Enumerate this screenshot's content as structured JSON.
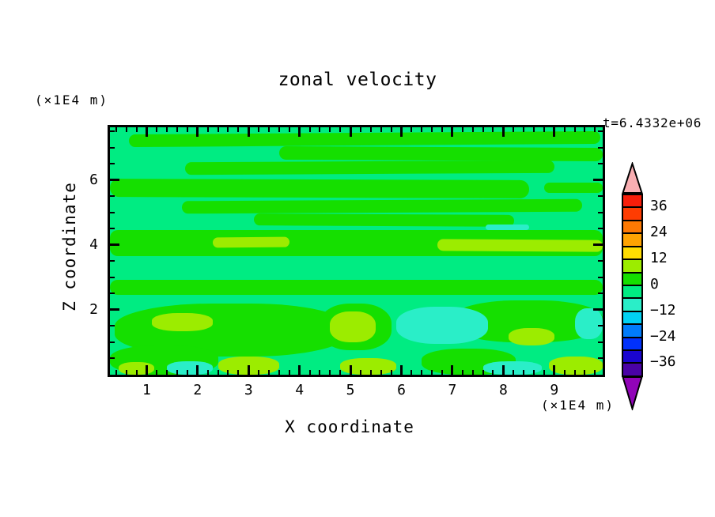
{
  "title": "zonal velocity",
  "timestamp": "t=6.4332e+06",
  "axes": {
    "x": {
      "title": "X coordinate",
      "unit": "(×1E4 m)",
      "tick_labels": [
        "1",
        "2",
        "3",
        "4",
        "5",
        "6",
        "7",
        "8",
        "9"
      ],
      "tick_values": [
        1,
        2,
        3,
        4,
        5,
        6,
        7,
        8,
        9
      ],
      "minor_step": 0.2,
      "range": [
        0.28,
        9.95
      ]
    },
    "z": {
      "title": "Z coordinate",
      "unit": "(×1E4 m)",
      "tick_labels": [
        "2",
        "4",
        "6"
      ],
      "tick_values": [
        2,
        4,
        6
      ],
      "minor_step": 0.5,
      "range": [
        0,
        7.63
      ]
    }
  },
  "colorbar": {
    "tick_labels": [
      "36",
      "24",
      "12",
      "0",
      "−12",
      "−24",
      "−36"
    ],
    "tick_values": [
      36,
      24,
      12,
      0,
      -12,
      -24,
      -36
    ],
    "levels": [
      -42,
      -36,
      -30,
      -24,
      -18,
      -12,
      -6,
      0,
      6,
      12,
      18,
      24,
      30,
      36,
      42
    ],
    "colors_top_to_bottom": [
      "#F81E0A",
      "#FE3C02",
      "#FD7903",
      "#FFA302",
      "#FFDC02",
      "#9CEC00",
      "#15DF00",
      "#00EC82",
      "#2AEEC8",
      "#01D2F3",
      "#017CFB",
      "#0131FB",
      "#1A05CF",
      "#4A02A6"
    ],
    "over_arrow_color": "#F8AEB2",
    "under_arrow_color": "#9104B8"
  },
  "chart_data": {
    "type": "heatmap",
    "title": "zonal velocity",
    "xlabel": "X coordinate (×1E4 m)",
    "ylabel": "Z coordinate (×1E4 m)",
    "time_label": "t=6.4332e+06",
    "xlim": [
      0.28,
      9.95
    ],
    "ylim": [
      0,
      7.63
    ],
    "contour_interval": 6,
    "levels": [
      -42,
      -36,
      -30,
      -24,
      -18,
      -12,
      -6,
      0,
      6,
      12,
      18,
      24,
      30,
      36,
      42
    ],
    "palette": [
      {
        "band": "> 42",
        "color": "#F8AEB2"
      },
      {
        "band": "36 to 42",
        "color": "#F81E0A"
      },
      {
        "band": "30 to 36",
        "color": "#FE3C02"
      },
      {
        "band": "24 to 30",
        "color": "#FD7903"
      },
      {
        "band": "18 to 24",
        "color": "#FFA302"
      },
      {
        "band": "12 to 18",
        "color": "#FFDC02"
      },
      {
        "band": "6 to 12",
        "color": "#9CEC00"
      },
      {
        "band": "0 to 6",
        "color": "#15DF00"
      },
      {
        "band": "-6 to 0",
        "color": "#00EC82"
      },
      {
        "band": "-12 to -6",
        "color": "#2AEEC8"
      },
      {
        "band": "-18 to -12",
        "color": "#01D2F3"
      },
      {
        "band": "-24 to -18",
        "color": "#017CFB"
      },
      {
        "band": "-30 to -24",
        "color": "#0131FB"
      },
      {
        "band": "-36 to -30",
        "color": "#1A05CF"
      },
      {
        "band": "-42 to -36",
        "color": "#4A02A6"
      },
      {
        "band": "< -42",
        "color": "#9104B8"
      }
    ],
    "background_band": "-6 to 0",
    "background_color": "#00EC82",
    "features": [
      {
        "band": "0 to 6",
        "color": "#15DF00",
        "shape": "streak",
        "x": [
          0.65,
          9.9
        ],
        "z": [
          7.05,
          7.45
        ],
        "rot": -0.4
      },
      {
        "band": "0 to 6",
        "color": "#15DF00",
        "shape": "streak",
        "x": [
          3.6,
          9.95
        ],
        "z": [
          6.6,
          7.02
        ],
        "rot": 0.3
      },
      {
        "band": "0 to 6",
        "color": "#15DF00",
        "shape": "streak",
        "x": [
          1.75,
          9.0
        ],
        "z": [
          6.18,
          6.58
        ],
        "rot": -0.3
      },
      {
        "band": "0 to 6",
        "color": "#15DF00",
        "shape": "streak",
        "x": [
          0.28,
          8.5
        ],
        "z": [
          5.48,
          6.03
        ],
        "rot": 0.2
      },
      {
        "band": "0 to 6",
        "color": "#15DF00",
        "shape": "streak",
        "x": [
          8.8,
          9.95
        ],
        "z": [
          5.6,
          5.92
        ],
        "rot": 0
      },
      {
        "band": "0 to 6",
        "color": "#15DF00",
        "shape": "streak",
        "x": [
          1.7,
          9.55
        ],
        "z": [
          4.98,
          5.38
        ],
        "rot": -0.3
      },
      {
        "band": "0 to 6",
        "color": "#15DF00",
        "shape": "streak",
        "x": [
          3.1,
          8.2
        ],
        "z": [
          4.58,
          4.95
        ],
        "rot": 0.3
      },
      {
        "band": "0 to 6",
        "color": "#15DF00",
        "shape": "band",
        "x": [
          0.28,
          9.95
        ],
        "z": [
          3.65,
          4.45
        ],
        "rot": 0
      },
      {
        "band": "0 to 6",
        "color": "#15DF00",
        "shape": "streak",
        "x": [
          0.28,
          9.95
        ],
        "z": [
          2.45,
          2.92
        ],
        "rot": 0
      },
      {
        "band": "0 to 6",
        "color": "#15DF00",
        "shape": "blob",
        "x": [
          0.38,
          4.95
        ],
        "z": [
          0.55,
          2.2
        ],
        "rot": 0
      },
      {
        "band": "0 to 6",
        "color": "#15DF00",
        "shape": "blob",
        "x": [
          4.4,
          5.8
        ],
        "z": [
          0.75,
          2.2
        ],
        "rot": 0
      },
      {
        "band": "0 to 6",
        "color": "#15DF00",
        "shape": "blob",
        "x": [
          7.0,
          9.95
        ],
        "z": [
          1.0,
          2.3
        ],
        "rot": 0
      },
      {
        "band": "0 to 6",
        "color": "#15DF00",
        "shape": "blob",
        "x": [
          0.28,
          2.4
        ],
        "z": [
          0,
          0.9
        ],
        "rot": 0
      },
      {
        "band": "0 to 6",
        "color": "#15DF00",
        "shape": "blob",
        "x": [
          6.4,
          8.25
        ],
        "z": [
          0,
          0.8
        ],
        "rot": 0
      },
      {
        "band": "-12 to -6",
        "color": "#2AEEC8",
        "shape": "blob",
        "x": [
          5.9,
          7.7
        ],
        "z": [
          0.95,
          2.1
        ],
        "rot": 0
      },
      {
        "band": "-12 to -6",
        "color": "#2AEEC8",
        "shape": "blob",
        "x": [
          9.4,
          9.95
        ],
        "z": [
          1.1,
          2.05
        ],
        "rot": 0
      },
      {
        "band": "-12 to -6",
        "color": "#2AEEC8",
        "shape": "streak",
        "x": [
          7.65,
          8.5
        ],
        "z": [
          4.45,
          4.62
        ],
        "rot": 0
      },
      {
        "band": "-12 to -6",
        "color": "#2AEEC8",
        "shape": "blob",
        "x": [
          1.4,
          2.3
        ],
        "z": [
          0,
          0.42
        ],
        "rot": 0
      },
      {
        "band": "-12 to -6",
        "color": "#2AEEC8",
        "shape": "blob",
        "x": [
          7.6,
          8.75
        ],
        "z": [
          0,
          0.42
        ],
        "rot": 0
      },
      {
        "band": "6 to 12",
        "color": "#9CEC00",
        "shape": "streak",
        "x": [
          2.3,
          3.8
        ],
        "z": [
          3.93,
          4.25
        ],
        "rot": -0.5
      },
      {
        "band": "6 to 12",
        "color": "#9CEC00",
        "shape": "streak",
        "x": [
          6.7,
          9.95
        ],
        "z": [
          3.8,
          4.16
        ],
        "rot": 0.4
      },
      {
        "band": "6 to 12",
        "color": "#9CEC00",
        "shape": "blob",
        "x": [
          1.1,
          2.3
        ],
        "z": [
          1.35,
          1.9
        ],
        "rot": 0
      },
      {
        "band": "6 to 12",
        "color": "#9CEC00",
        "shape": "blob",
        "x": [
          4.6,
          5.5
        ],
        "z": [
          1.0,
          1.95
        ],
        "rot": 0
      },
      {
        "band": "6 to 12",
        "color": "#9CEC00",
        "shape": "blob",
        "x": [
          8.1,
          9.0
        ],
        "z": [
          0.9,
          1.45
        ],
        "rot": 0
      },
      {
        "band": "6 to 12",
        "color": "#9CEC00",
        "shape": "blob",
        "x": [
          2.4,
          3.6
        ],
        "z": [
          0,
          0.55
        ],
        "rot": 0
      },
      {
        "band": "6 to 12",
        "color": "#9CEC00",
        "shape": "blob",
        "x": [
          4.8,
          5.9
        ],
        "z": [
          0,
          0.5
        ],
        "rot": 0
      },
      {
        "band": "6 to 12",
        "color": "#9CEC00",
        "shape": "blob",
        "x": [
          8.9,
          9.95
        ],
        "z": [
          0,
          0.55
        ],
        "rot": 0
      },
      {
        "band": "6 to 12",
        "color": "#9CEC00",
        "shape": "blob",
        "x": [
          0.45,
          1.15
        ],
        "z": [
          0,
          0.4
        ],
        "rot": 0
      }
    ]
  }
}
